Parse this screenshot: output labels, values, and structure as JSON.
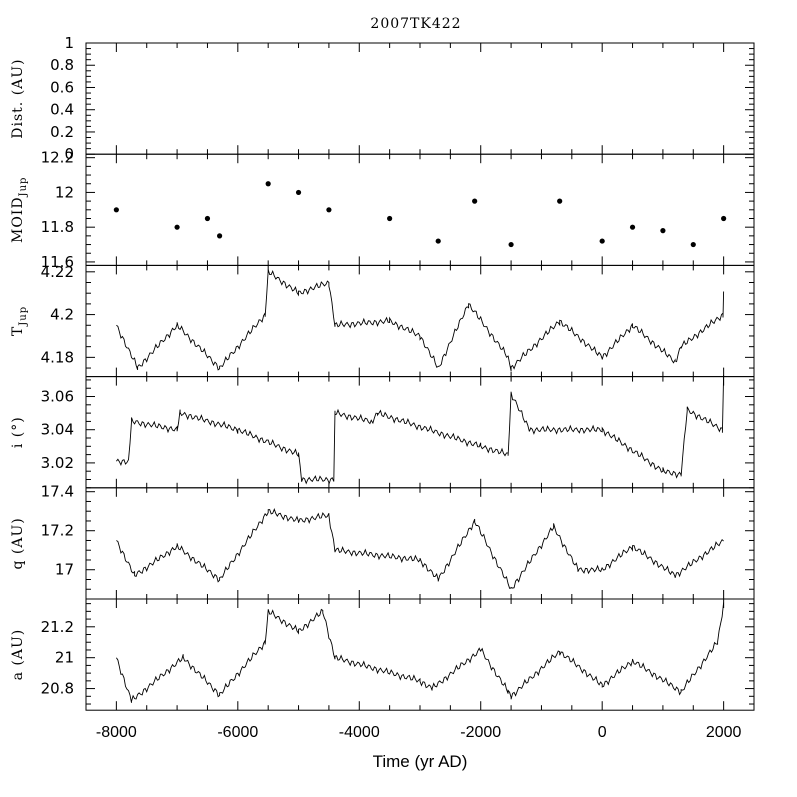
{
  "chart_data": {
    "title": "2007TK422",
    "xlabel": "Time (yr AD)",
    "xlim": [
      -8500,
      2500
    ],
    "xticks": [
      -8000,
      -6000,
      -4000,
      -2000,
      0,
      2000
    ],
    "xtick_labels": [
      "-8000",
      "-6000",
      "-4000",
      "-2000",
      "0",
      "2000"
    ],
    "panels": [
      {
        "id": "dist",
        "type": "line",
        "ylabel": "Dist. (AU)",
        "ylim": [
          0,
          1
        ],
        "yticks": [
          0,
          0.2,
          0.4,
          0.6,
          0.8,
          1
        ],
        "ytick_labels": [
          "0",
          "0.2",
          "0.4",
          "0.6",
          "0.8",
          "1"
        ],
        "series": []
      },
      {
        "id": "moid",
        "type": "scatter",
        "ylabel": "MOID",
        "ylabel_sub": "Jup",
        "ylim": [
          11.58,
          12.22
        ],
        "yticks": [
          11.6,
          11.8,
          12,
          12.2
        ],
        "ytick_labels": [
          "11.6",
          "11.8",
          "12",
          "12.2"
        ],
        "x": [
          -8000,
          -7000,
          -6500,
          -6300,
          -5500,
          -5000,
          -4500,
          -3500,
          -2700,
          -2100,
          -1500,
          -700,
          0,
          500,
          1000,
          1500,
          2000
        ],
        "y": [
          11.9,
          11.8,
          11.85,
          11.75,
          12.05,
          12.0,
          11.9,
          11.85,
          11.72,
          11.95,
          11.7,
          11.95,
          11.72,
          11.8,
          11.78,
          11.7,
          11.85
        ]
      },
      {
        "id": "tjup",
        "type": "line",
        "ylabel": "T",
        "ylabel_sub": "Jup",
        "ylim": [
          4.171,
          4.223
        ],
        "yticks": [
          4.18,
          4.2,
          4.22
        ],
        "ytick_labels": [
          "4.18",
          "4.2",
          "4.22"
        ],
        "x": [
          -8000,
          -7650,
          -7000,
          -6300,
          -5550,
          -5500,
          -5000,
          -4500,
          -4400,
          -3500,
          -3000,
          -2700,
          -2200,
          -1550,
          -1500,
          -700,
          0,
          500,
          1200,
          1300,
          1990,
          2000
        ],
        "y": [
          4.195,
          4.175,
          4.195,
          4.175,
          4.2,
          4.22,
          4.21,
          4.215,
          4.195,
          4.197,
          4.19,
          4.175,
          4.205,
          4.18,
          4.175,
          4.197,
          4.18,
          4.195,
          4.178,
          4.185,
          4.2,
          4.21
        ]
      },
      {
        "id": "incl",
        "type": "line",
        "ylabel": "i (°)",
        "ylim": [
          3.005,
          3.072
        ],
        "yticks": [
          3.02,
          3.04,
          3.06
        ],
        "ytick_labels": [
          "3.02",
          "3.04",
          "3.06"
        ],
        "x": [
          -8000,
          -7800,
          -7750,
          -7000,
          -6950,
          -6000,
          -5000,
          -4950,
          -4420,
          -4400,
          -3800,
          -3700,
          -2000,
          -1550,
          -1500,
          -1200,
          0,
          1000,
          1300,
          1400,
          1980,
          2000
        ],
        "y": [
          3.021,
          3.021,
          3.045,
          3.04,
          3.05,
          3.04,
          3.025,
          3.01,
          3.01,
          3.05,
          3.045,
          3.05,
          3.03,
          3.025,
          3.062,
          3.04,
          3.04,
          3.015,
          3.013,
          3.052,
          3.04,
          3.072
        ]
      },
      {
        "id": "q",
        "type": "line",
        "ylabel": "q (AU)",
        "ylim": [
          16.85,
          17.42
        ],
        "yticks": [
          17,
          17.2,
          17.4
        ],
        "ytick_labels": [
          "17",
          "17.2",
          "17.4"
        ],
        "x": [
          -8000,
          -7700,
          -7000,
          -6300,
          -5500,
          -5000,
          -4500,
          -4400,
          -3000,
          -2700,
          -2100,
          -1500,
          -800,
          -400,
          0,
          500,
          1200,
          2000
        ],
        "y": [
          17.15,
          16.97,
          17.12,
          16.95,
          17.3,
          17.25,
          17.28,
          17.1,
          17.05,
          16.95,
          17.25,
          16.9,
          17.22,
          17.0,
          17.0,
          17.12,
          16.97,
          17.15
        ]
      },
      {
        "id": "a",
        "type": "line",
        "ylabel": "a (AU)",
        "ylim": [
          20.66,
          21.38
        ],
        "yticks": [
          20.8,
          21,
          21.2
        ],
        "ytick_labels": [
          "20.8",
          "21",
          "21.2"
        ],
        "x": [
          -8000,
          -7750,
          -6900,
          -6300,
          -5550,
          -5500,
          -5000,
          -4600,
          -4400,
          -3000,
          -2800,
          -2000,
          -1550,
          -1500,
          -700,
          0,
          500,
          1300,
          1900,
          2000
        ],
        "y": [
          21.0,
          20.72,
          21.0,
          20.76,
          21.1,
          21.3,
          21.17,
          21.3,
          21.0,
          20.85,
          20.8,
          21.05,
          20.78,
          20.75,
          21.04,
          20.82,
          20.98,
          20.78,
          21.1,
          21.35
        ]
      }
    ]
  }
}
